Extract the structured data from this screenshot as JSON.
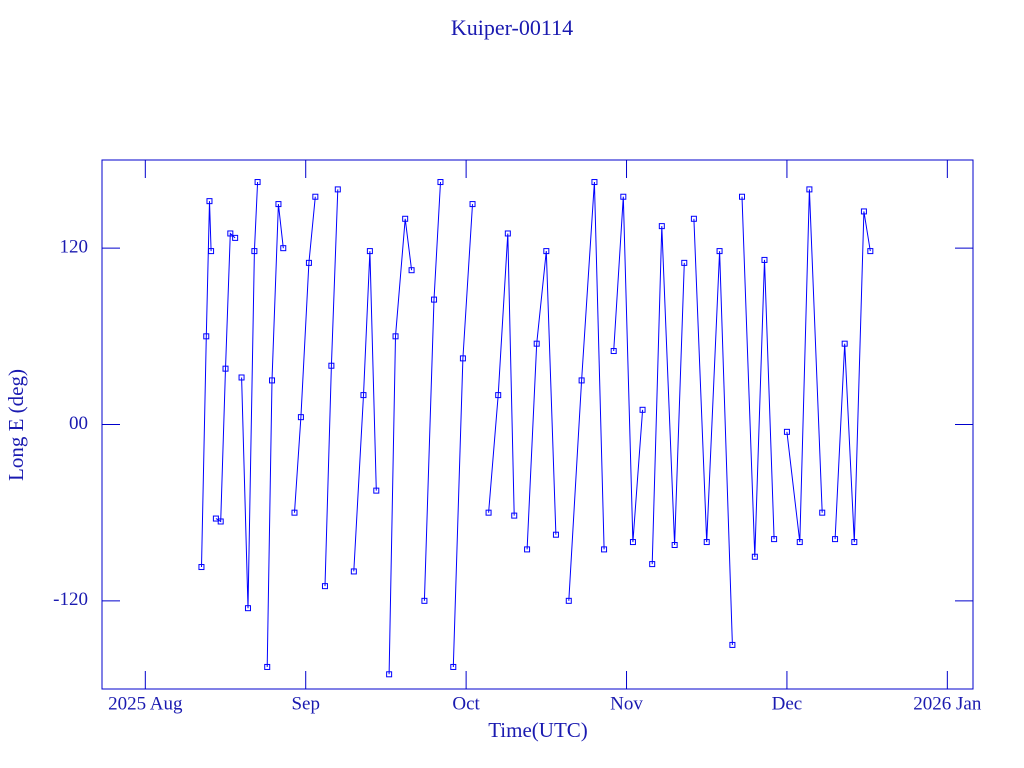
{
  "chart_data": {
    "type": "line",
    "title": "Kuiper-00114",
    "x_label": "Time(UTC)",
    "y_label": "Long E (deg)",
    "color": "#0000ff",
    "x": [
      8.35,
      8.38,
      8.4,
      8.41,
      null,
      8.44,
      8.47,
      8.5,
      8.53,
      8.56,
      null,
      8.6,
      8.64,
      8.68,
      8.7,
      null,
      8.76,
      8.79,
      8.83,
      8.86,
      null,
      8.93,
      8.97,
      9.02,
      9.06,
      null,
      9.12,
      9.16,
      9.2,
      null,
      9.3,
      9.36,
      9.4,
      9.44,
      null,
      9.52,
      9.56,
      9.62,
      9.66,
      null,
      9.74,
      9.8,
      9.84,
      null,
      9.92,
      9.98,
      10.04,
      null,
      10.14,
      10.2,
      10.26,
      10.3,
      null,
      10.38,
      10.44,
      10.5,
      10.56,
      null,
      10.64,
      10.72,
      10.8,
      10.86,
      null,
      10.92,
      10.98,
      11.04,
      11.1,
      null,
      11.16,
      11.22,
      11.3,
      11.36,
      null,
      11.42,
      11.5,
      11.58,
      11.66,
      null,
      11.72,
      11.8,
      11.86,
      11.92,
      null,
      12.0,
      12.08,
      12.14,
      12.22,
      null,
      12.3,
      12.36,
      12.42,
      12.48,
      12.52
    ],
    "values": [
      -97,
      60,
      152,
      118,
      null,
      -64,
      -66,
      38,
      130,
      127,
      null,
      32,
      -125,
      118,
      165,
      null,
      -165,
      30,
      150,
      120,
      null,
      -60,
      5,
      110,
      155,
      null,
      -110,
      40,
      160,
      null,
      -100,
      20,
      118,
      -45,
      null,
      -170,
      60,
      140,
      105,
      null,
      -120,
      85,
      165,
      null,
      -165,
      45,
      150,
      null,
      -60,
      20,
      130,
      -62,
      null,
      -85,
      55,
      118,
      -75,
      null,
      -120,
      30,
      165,
      -85,
      null,
      50,
      155,
      -80,
      10,
      null,
      -95,
      135,
      -82,
      110,
      null,
      140,
      -80,
      118,
      -150,
      null,
      155,
      -90,
      112,
      -78,
      null,
      -5,
      -80,
      160,
      -60,
      null,
      -78,
      55,
      -80,
      145,
      118
    ],
    "xlim": [
      7.73,
      13.16
    ],
    "xticks": [
      {
        "value": 8,
        "label": "2025 Aug"
      },
      {
        "value": 9,
        "label": "Sep"
      },
      {
        "value": 10,
        "label": "Oct"
      },
      {
        "value": 11,
        "label": "Nov"
      },
      {
        "value": 12,
        "label": "Dec"
      },
      {
        "value": 13,
        "label": "2026 Jan"
      }
    ],
    "ylim": [
      -180,
      180
    ],
    "yticks": [
      120,
      {
        "value": 0,
        "label": "00"
      },
      -120
    ]
  }
}
